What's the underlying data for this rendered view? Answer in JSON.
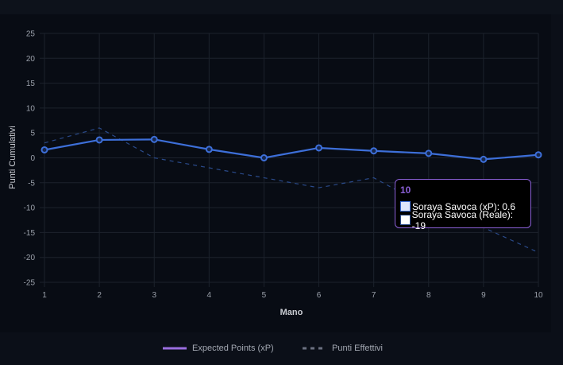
{
  "chart_data": {
    "type": "line",
    "x": [
      1,
      2,
      3,
      4,
      5,
      6,
      7,
      8,
      9,
      10
    ],
    "xlabel": "Mano",
    "ylabel": "Punti Cumulativi",
    "ylim": [
      -25,
      25
    ],
    "yticks": [
      25,
      20,
      15,
      10,
      5,
      0,
      -5,
      -10,
      -15,
      -20,
      -25
    ],
    "xticks": [
      1,
      2,
      3,
      4,
      5,
      6,
      7,
      8,
      9,
      10
    ],
    "grid": true,
    "legend_position": "bottom",
    "series": [
      {
        "name": "Expected Points (xP)",
        "style": "solid",
        "color": "#3d6fd9",
        "legend_color": "#9a6ee0",
        "values": [
          1.6,
          3.6,
          3.7,
          1.7,
          0.0,
          2.0,
          1.4,
          0.9,
          -0.3,
          0.6
        ]
      },
      {
        "name": "Punti Effettivi",
        "style": "dashed",
        "color": "#2a4a8a",
        "legend_color": "#6b7080",
        "values": [
          3,
          6,
          0,
          -2,
          -4,
          -6,
          -4,
          -10,
          -14,
          -19
        ]
      }
    ]
  },
  "tooltip": {
    "title": "10",
    "rows": [
      {
        "label": "Soraya Savoca (xP): 0.6",
        "swatch_fill": "#dfe6fb",
        "swatch_border": "#3d6fd9"
      },
      {
        "label": "Soraya Savoca (Reale): -19",
        "swatch_fill": "#ffffff",
        "swatch_border": "#2a4a8a"
      }
    ]
  }
}
